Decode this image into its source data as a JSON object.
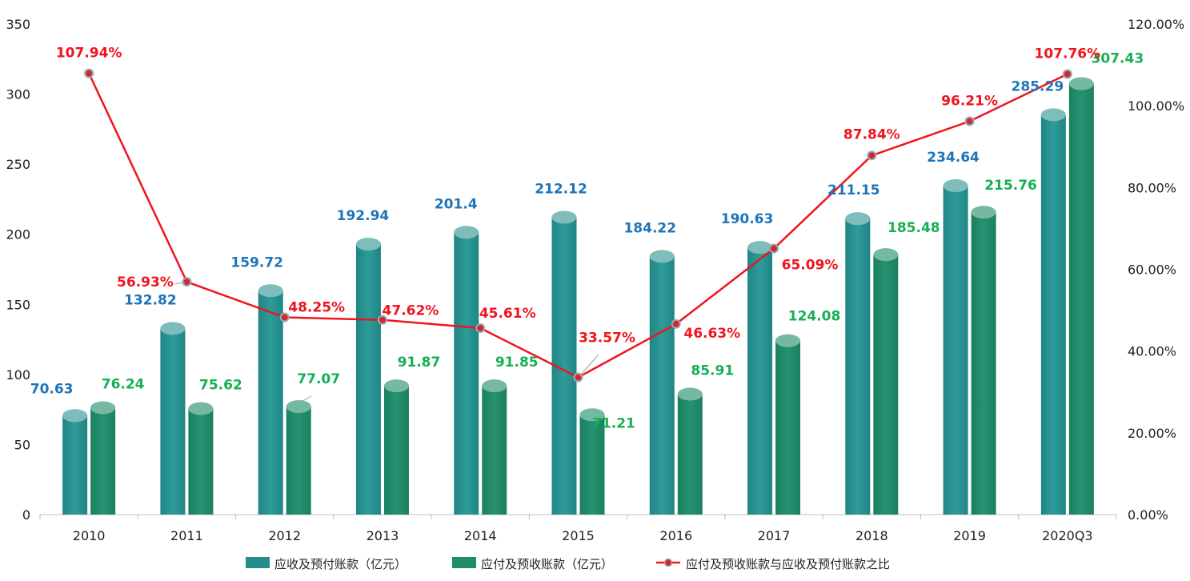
{
  "chart_data": {
    "type": "bar+line",
    "categories": [
      "2010",
      "2011",
      "2012",
      "2013",
      "2014",
      "2015",
      "2016",
      "2017",
      "2018",
      "2019",
      "2020Q3"
    ],
    "series": [
      {
        "name": "应收及预付账款（亿元）",
        "type": "bar",
        "axis": "left",
        "color": "#268c8c",
        "values": [
          70.63,
          132.82,
          159.72,
          192.94,
          201.4,
          212.12,
          184.22,
          190.63,
          211.15,
          234.64,
          285.29
        ],
        "labels": [
          "70.63",
          "132.82",
          "159.72",
          "192.94",
          "201.4",
          "212.12",
          "184.22",
          "190.63",
          "211.15",
          "234.64",
          "285.29"
        ]
      },
      {
        "name": "应付及预收账款（亿元）",
        "type": "bar",
        "axis": "left",
        "color": "#218c6a",
        "values": [
          76.24,
          75.62,
          77.07,
          91.87,
          91.85,
          71.21,
          85.91,
          124.08,
          185.48,
          215.76,
          307.43
        ],
        "labels": [
          "76.24",
          "75.62",
          "77.07",
          "91.87",
          "91.85",
          "71.21",
          "85.91",
          "124.08",
          "185.48",
          "215.76",
          "307.43"
        ]
      },
      {
        "name": "应付及预收账款与应收及预付账款之比",
        "type": "line",
        "axis": "right",
        "color": "#f0141e",
        "values": [
          107.94,
          56.93,
          48.25,
          47.62,
          45.61,
          33.57,
          46.63,
          65.09,
          87.84,
          96.21,
          107.76
        ],
        "labels": [
          "107.94%",
          "56.93%",
          "48.25%",
          "47.62%",
          "45.61%",
          "33.57%",
          "46.63%",
          "65.09%",
          "87.84%",
          "96.21%",
          "107.76%"
        ]
      }
    ],
    "left_axis": {
      "min": 0,
      "max": 350,
      "ticks": [
        "0",
        "50",
        "100",
        "150",
        "200",
        "250",
        "300",
        "350"
      ]
    },
    "right_axis": {
      "min": 0,
      "max": 120,
      "ticks": [
        "0.00%",
        "20.00%",
        "40.00%",
        "60.00%",
        "80.00%",
        "100.00%",
        "120.00%"
      ]
    },
    "legend_position": "bottom",
    "grid": false
  }
}
